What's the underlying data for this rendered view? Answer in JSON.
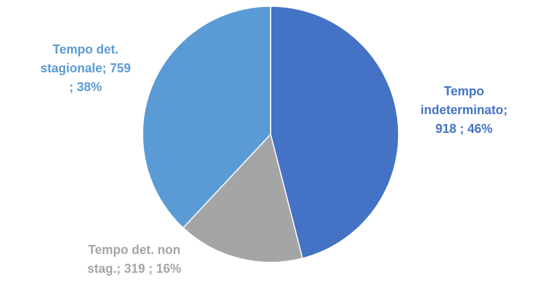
{
  "chart_data": {
    "type": "pie",
    "title": "",
    "colors": {
      "Tempo indeterminato": "#4472C4",
      "Tempo det. non stag.": "#A5A5A5",
      "Tempo det. stagionale": "#5B9BD5"
    },
    "slices": [
      {
        "category": "Tempo indeterminato",
        "value": 918,
        "percent": 46,
        "color": "#4472C4",
        "label_lines": [
          "Tempo",
          "indeterminato;",
          "918 ; 46%"
        ]
      },
      {
        "category": "Tempo det. non stag.",
        "value": 319,
        "percent": 16,
        "color": "#A5A5A5",
        "label_lines": [
          "Tempo det. non",
          "stag.;  319 ; 16%"
        ]
      },
      {
        "category": "Tempo det. stagionale",
        "value": 759,
        "percent": 38,
        "color": "#5B9BD5",
        "label_lines": [
          "Tempo  det.",
          "stagionale;  759",
          "; 38%"
        ]
      }
    ],
    "legend": "none",
    "start_angle": "12 o'clock",
    "direction": "clockwise"
  }
}
